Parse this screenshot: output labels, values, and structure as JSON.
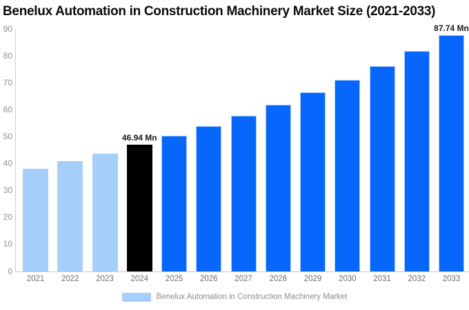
{
  "title": "Benelux Automation in Construction Machinery Market Size (2021-2033)",
  "colors": {
    "historical_bar": "#a5cefb",
    "base_year_bar": "#000000",
    "forecast_bar": "#0766fb",
    "axis_line": "#cccccc",
    "y_tick_label": "#8c8c8c",
    "x_tick_label": "#6e6e6e",
    "legend_text": "#8a8a8a",
    "annotation_text": "#1a1a1a",
    "background": "#ffffff"
  },
  "chart_data": {
    "type": "bar",
    "title": "Benelux Automation in Construction Machinery Market Size (2021-2033)",
    "categories": [
      "2021",
      "2022",
      "2023",
      "2024",
      "2025",
      "2026",
      "2027",
      "2028",
      "2029",
      "2030",
      "2031",
      "2032",
      "2033"
    ],
    "values": [
      38.1,
      40.8,
      43.8,
      46.94,
      50.3,
      53.9,
      57.8,
      62.0,
      66.4,
      71.2,
      76.3,
      81.8,
      87.74
    ],
    "unit": "Mn",
    "bar_roles": [
      "historical",
      "historical",
      "historical",
      "base",
      "forecast",
      "forecast",
      "forecast",
      "forecast",
      "forecast",
      "forecast",
      "forecast",
      "forecast",
      "forecast"
    ],
    "annotations": [
      {
        "category": "2024",
        "text": "46.94 Mn"
      },
      {
        "category": "2033",
        "text": "87.74 Mn"
      }
    ],
    "xlabel": "",
    "ylabel": "",
    "ylim": [
      0,
      90
    ],
    "yticks": [
      0,
      10,
      20,
      30,
      40,
      50,
      60,
      70,
      80,
      90
    ],
    "grid": false,
    "legend": {
      "label": "Benelux Automation in Construction Machinery Market",
      "swatch_color": "#a5cefb",
      "position": "bottom-center"
    }
  }
}
